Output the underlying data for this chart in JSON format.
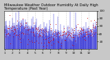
{
  "title": "Milwaukee Weather Outdoor Humidity At Daily High Temperature (Past Year)",
  "background_color": "#c8c8c8",
  "plot_bg_color": "#ffffff",
  "grid_color": "#888888",
  "ylim": [
    0,
    100
  ],
  "num_points": 365,
  "seed": 42,
  "blue_color": "#0000cc",
  "red_color": "#cc0000",
  "title_fontsize": 3.8,
  "tick_fontsize": 3.0,
  "month_ticks": [
    0,
    31,
    59,
    90,
    120,
    151,
    181,
    212,
    243,
    273,
    304,
    334
  ],
  "month_labels": [
    "1",
    "2",
    "3",
    "4",
    "5",
    "6",
    "7",
    "8",
    "9",
    "10",
    "11",
    "12"
  ],
  "yticks": [
    20,
    40,
    60,
    80,
    100
  ],
  "blue_tall_spikes": [
    44,
    54,
    195,
    258,
    282
  ],
  "blue_tall_vals": [
    95,
    100,
    92,
    98,
    96
  ]
}
